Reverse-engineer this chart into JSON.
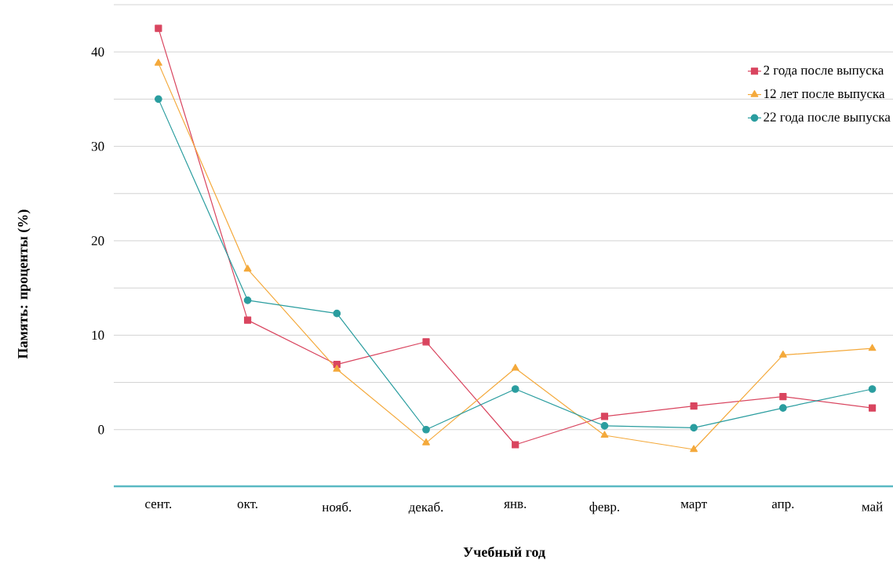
{
  "chart_data": {
    "type": "line",
    "xlabel": "Учебный год",
    "ylabel": "Память: проценты (%)",
    "categories": [
      "сент.",
      "окт.",
      "нояб.",
      "декаб.",
      "янв.",
      "февр.",
      "март",
      "апр.",
      "май"
    ],
    "series": [
      {
        "name": "2 года после выпуска",
        "color": "#d9455f",
        "marker": "square",
        "values": [
          42.5,
          11.6,
          6.9,
          9.3,
          -1.6,
          1.4,
          2.5,
          3.5,
          2.3
        ]
      },
      {
        "name": "12 лет после выпуска",
        "color": "#f4a93b",
        "marker": "triangle",
        "values": [
          38.8,
          17.0,
          6.4,
          -1.4,
          6.5,
          -0.6,
          -2.1,
          7.9,
          8.6
        ]
      },
      {
        "name": "22 года после выпуска",
        "color": "#2a9d9f",
        "marker": "circle",
        "values": [
          35.0,
          13.7,
          12.3,
          0,
          4.3,
          0.4,
          0.2,
          2.3,
          4.3
        ]
      }
    ],
    "ylim": [
      -6,
      45
    ],
    "yticks": [
      0,
      {
        "value": 5,
        "label": null
      },
      10,
      {
        "value": 15,
        "label": null
      },
      20,
      {
        "value": 25,
        "label": null
      },
      30,
      {
        "value": 35,
        "label": null
      },
      40,
      {
        "value": 45,
        "label": null
      }
    ],
    "grid": "y",
    "legend": "top right"
  }
}
